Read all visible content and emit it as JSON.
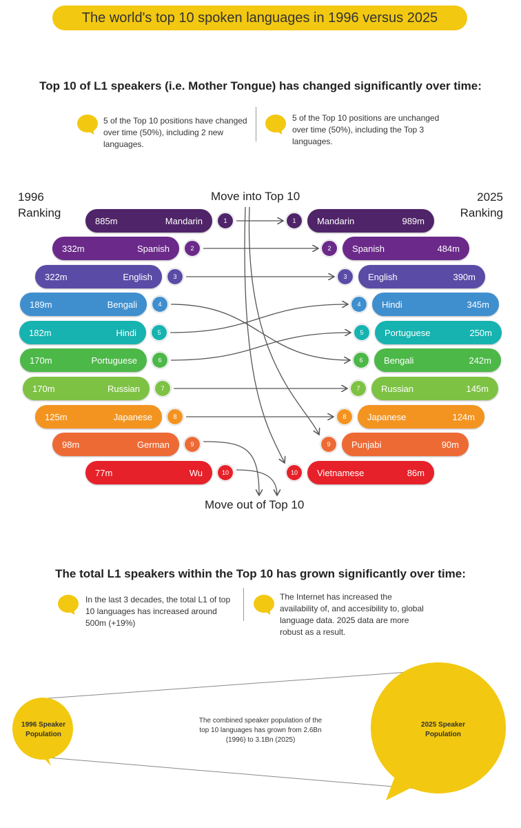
{
  "title": "The world's top 10 spoken languages in 1996 versus 2025",
  "section1": {
    "heading": "Top 10 of L1 speakers (i.e. Mother Tongue) has changed significantly over time:",
    "note_left": "5 of the Top 10 positions have changed over time (50%), including 2 new languages.",
    "note_right": "5 of the Top 10 positions are unchanged over time (50%), including the Top 3 languages."
  },
  "left_header": {
    "year": "1996",
    "label": "Ranking"
  },
  "right_header": {
    "year": "2025",
    "label": "Ranking"
  },
  "move_in_label": "Move into Top 10",
  "move_out_label": "Move out of Top 10",
  "rank_colors": [
    "#4f2468",
    "#6b2a8a",
    "#5a4ba6",
    "#3f8fcf",
    "#16b3b0",
    "#4cb848",
    "#7ec244",
    "#f39421",
    "#ee6a35",
    "#e62129"
  ],
  "ranking_1996": [
    {
      "rank": "1",
      "name": "Mandarin",
      "value": "885m"
    },
    {
      "rank": "2",
      "name": "Spanish",
      "value": "332m"
    },
    {
      "rank": "3",
      "name": "English",
      "value": "322m"
    },
    {
      "rank": "4",
      "name": "Bengali",
      "value": "189m"
    },
    {
      "rank": "5",
      "name": "Hindi",
      "value": "182m"
    },
    {
      "rank": "6",
      "name": "Portuguese",
      "value": "170m"
    },
    {
      "rank": "7",
      "name": "Russian",
      "value": "170m"
    },
    {
      "rank": "8",
      "name": "Japanese",
      "value": "125m"
    },
    {
      "rank": "9",
      "name": "German",
      "value": "98m"
    },
    {
      "rank": "10",
      "name": "Wu",
      "value": "77m"
    }
  ],
  "ranking_2025": [
    {
      "rank": "1",
      "name": "Mandarin",
      "value": "989m"
    },
    {
      "rank": "2",
      "name": "Spanish",
      "value": "484m"
    },
    {
      "rank": "3",
      "name": "English",
      "value": "390m"
    },
    {
      "rank": "4",
      "name": "Hindi",
      "value": "345m"
    },
    {
      "rank": "5",
      "name": "Portuguese",
      "value": "250m"
    },
    {
      "rank": "6",
      "name": "Bengali",
      "value": "242m"
    },
    {
      "rank": "7",
      "name": "Russian",
      "value": "145m"
    },
    {
      "rank": "8",
      "name": "Japanese",
      "value": "124m"
    },
    {
      "rank": "9",
      "name": "Punjabi",
      "value": "90m"
    },
    {
      "rank": "10",
      "name": "Vietnamese",
      "value": "86m"
    }
  ],
  "section2": {
    "heading": "The total L1 speakers within the Top 10 has grown significantly over time:",
    "note_left": "In the last 3 decades, the total L1 of top 10 languages has increased around 500m (+19%)",
    "note_right": "The Internet has increased the availability of, and accesibility to, global language data. 2025 data are more robust as a result."
  },
  "population": {
    "left": "1996 Speaker Population",
    "right": "2025 Speaker Population",
    "text": "The combined speaker population of the top 10 languages has grown from 2.6Bn (1996) to 3.1Bn (2025)"
  }
}
